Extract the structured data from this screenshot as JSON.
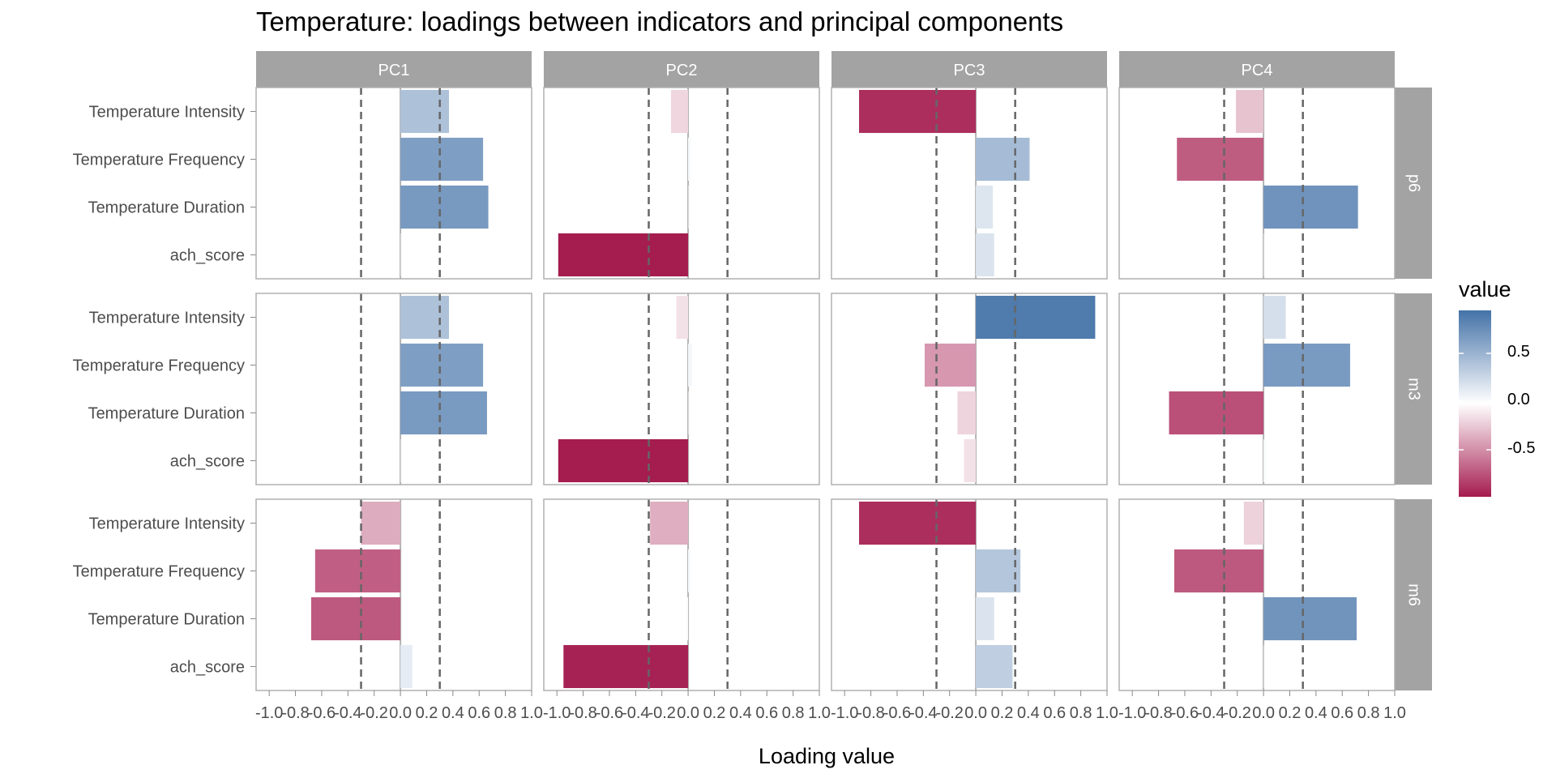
{
  "chart_data": {
    "type": "bar",
    "orientation": "horizontal",
    "title": "Temperature: loadings between indicators and principal components",
    "xlabel": "Loading value",
    "ylabel": "",
    "xlim": [
      -1.1,
      1.0
    ],
    "x_ticks": [
      "-1.0",
      "-0.8",
      "-0.6",
      "-0.4",
      "-0.2",
      "0.0",
      "0.2",
      "0.4",
      "0.6",
      "0.8",
      "1.0"
    ],
    "reference_lines": [
      -0.3,
      0.3
    ],
    "columns": [
      "PC1",
      "PC2",
      "PC3",
      "PC4"
    ],
    "rows": [
      "p6",
      "m3",
      "m6"
    ],
    "categories": [
      "Temperature Intensity",
      "Temperature Frequency",
      "Temperature Duration",
      "ach_score"
    ],
    "legend": {
      "title": "value",
      "position": "right",
      "tick_labels": [
        "0.5",
        "0.0",
        "-0.5"
      ],
      "range": [
        -0.98,
        0.98
      ]
    },
    "colors": {
      "negative": "#a51c4f",
      "zero": "#ffffff",
      "positive": "#4472a8",
      "strip": "#a3a3a3",
      "panel_border": "#b0b0b0",
      "reference_line": "#666666"
    },
    "panels": [
      {
        "row": "p6",
        "column": "PC1",
        "values": [
          0.37,
          0.63,
          0.67,
          0.0
        ]
      },
      {
        "row": "p6",
        "column": "PC2",
        "values": [
          -0.13,
          0.02,
          0.0,
          -0.99
        ]
      },
      {
        "row": "p6",
        "column": "PC3",
        "values": [
          -0.89,
          0.41,
          0.13,
          0.14
        ]
      },
      {
        "row": "p6",
        "column": "PC4",
        "values": [
          -0.21,
          -0.66,
          0.72,
          0.0
        ]
      },
      {
        "row": "m3",
        "column": "PC1",
        "values": [
          0.37,
          0.63,
          0.66,
          0.0
        ]
      },
      {
        "row": "m3",
        "column": "PC2",
        "values": [
          -0.09,
          0.03,
          0.0,
          -0.99
        ]
      },
      {
        "row": "m3",
        "column": "PC3",
        "values": [
          0.91,
          -0.39,
          -0.14,
          -0.09
        ]
      },
      {
        "row": "m3",
        "column": "PC4",
        "values": [
          0.17,
          0.66,
          -0.72,
          0.02
        ]
      },
      {
        "row": "m6",
        "column": "PC1",
        "values": [
          -0.3,
          -0.65,
          -0.68,
          0.09
        ]
      },
      {
        "row": "m6",
        "column": "PC2",
        "values": [
          -0.29,
          0.02,
          -0.01,
          -0.95
        ]
      },
      {
        "row": "m6",
        "column": "PC3",
        "values": [
          -0.89,
          0.34,
          0.14,
          0.28
        ]
      },
      {
        "row": "m6",
        "column": "PC4",
        "values": [
          -0.15,
          -0.68,
          0.71,
          0.0
        ]
      }
    ]
  }
}
